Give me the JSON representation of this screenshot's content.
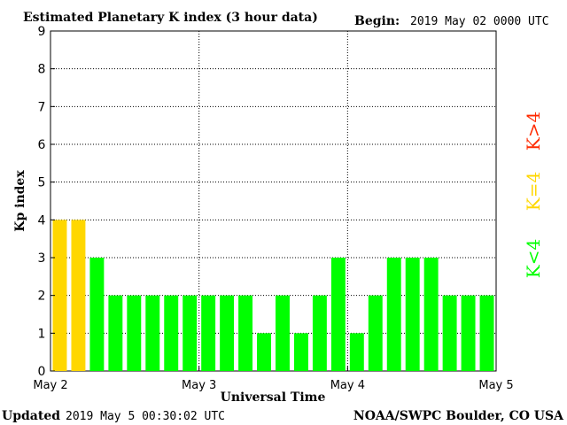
{
  "header": {
    "title": "Estimated Planetary K index (3 hour data)",
    "begin_label": "Begin:",
    "begin_value": "2019 May 02 0000 UTC"
  },
  "footer": {
    "updated_label": "Updated",
    "updated_value": "2019 May  5 00:30:02 UTC",
    "source": "NOAA/SWPC Boulder, CO USA"
  },
  "legend": {
    "low": "K<4",
    "mid": "K=4",
    "high": "K>4"
  },
  "colors": {
    "low": "#00ff00",
    "mid": "#ffd700",
    "high": "#ff2a00",
    "grid": "#000000"
  },
  "chart_data": {
    "type": "bar",
    "title": "Estimated Planetary K index (3 hour data)",
    "xlabel": "Universal Time",
    "ylabel": "Kp index",
    "ylim": [
      0,
      9
    ],
    "yticks": [
      0,
      1,
      2,
      3,
      4,
      5,
      6,
      7,
      8,
      9
    ],
    "xticks": [
      "May 2",
      "May 3",
      "May 4",
      "May 5"
    ],
    "grid": true,
    "values": [
      4,
      4,
      3,
      2,
      2,
      2,
      2,
      2,
      2,
      2,
      2,
      1,
      2,
      1,
      2,
      3,
      1,
      2,
      3,
      3,
      3,
      2,
      2,
      2
    ]
  }
}
